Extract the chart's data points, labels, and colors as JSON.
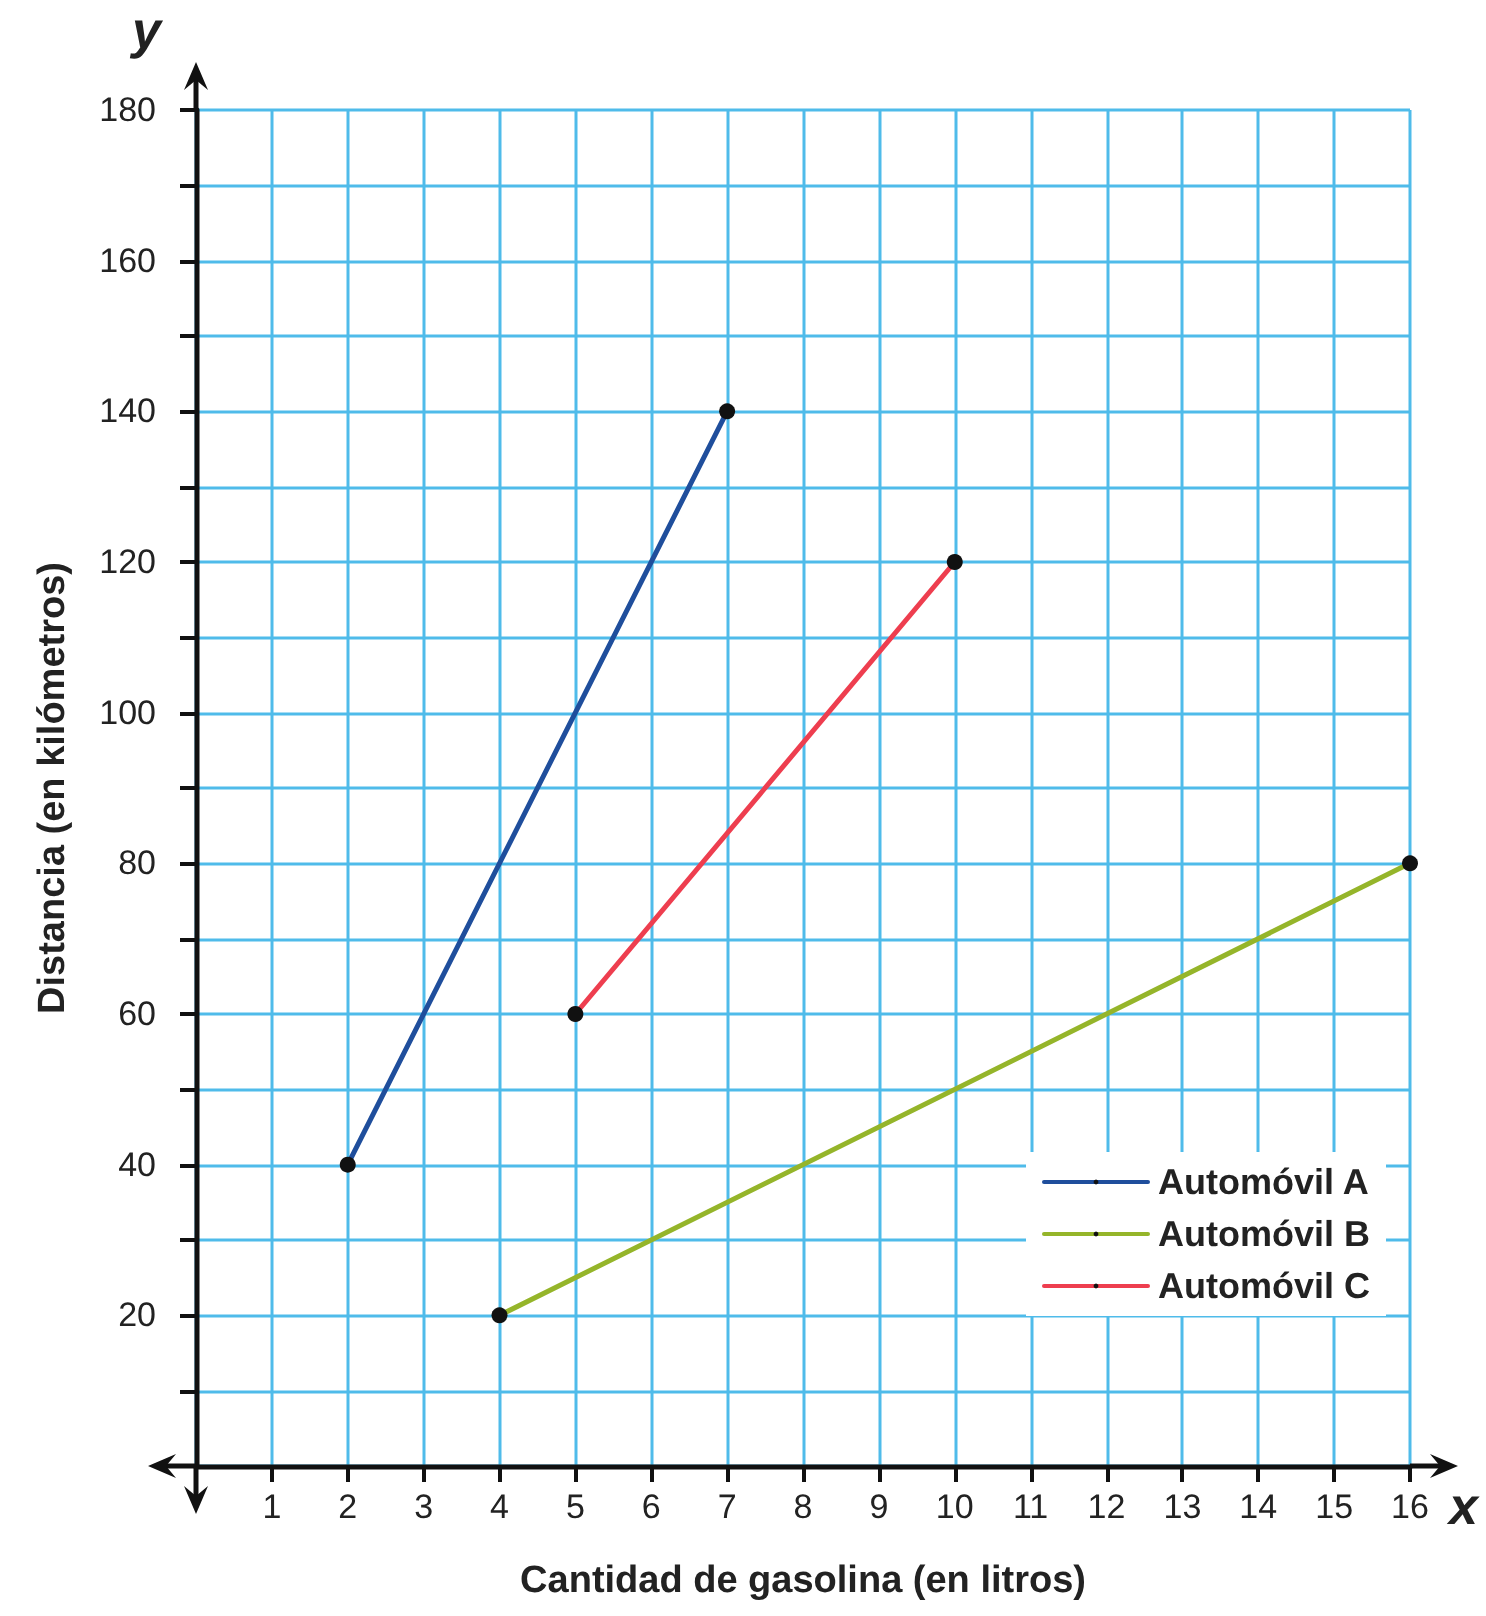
{
  "chart_data": {
    "type": "line",
    "xlabel": "Cantidad de gasolina (en litros)",
    "ylabel": "Distancia (en kilómetros)",
    "annotations": [
      "x",
      "y"
    ],
    "xlim": [
      0,
      16
    ],
    "ylim": [
      0,
      180
    ],
    "xticks": [
      {
        "value": 0,
        "label": null
      },
      1,
      2,
      3,
      4,
      5,
      6,
      7,
      8,
      9,
      10,
      11,
      12,
      13,
      14,
      15,
      16
    ],
    "yticks": [
      {
        "value": 0,
        "label": null
      },
      {
        "value": 10,
        "label": null
      },
      20,
      {
        "value": 30,
        "label": null
      },
      40,
      {
        "value": 50,
        "label": null
      },
      60,
      {
        "value": 70,
        "label": null
      },
      80,
      {
        "value": 90,
        "label": null
      },
      100,
      {
        "value": 110,
        "label": null
      },
      120,
      {
        "value": 130,
        "label": null
      },
      140,
      {
        "value": 150,
        "label": null
      },
      160,
      {
        "value": 170,
        "label": null
      },
      180
    ],
    "grid": true,
    "legend": "bottom right",
    "marker": "circle",
    "line_style": "solid",
    "series": [
      {
        "name": "Automóvil A",
        "color": "#1f4e9c",
        "x": [
          2,
          7
        ],
        "values": [
          40,
          140
        ]
      },
      {
        "name": "Automóvil B",
        "color": "#95b52a",
        "x": [
          4,
          16
        ],
        "values": [
          20,
          80
        ]
      },
      {
        "name": "Automóvil C",
        "color": "#ee3e4f",
        "x": [
          5,
          10
        ],
        "values": [
          60,
          120
        ]
      }
    ]
  }
}
